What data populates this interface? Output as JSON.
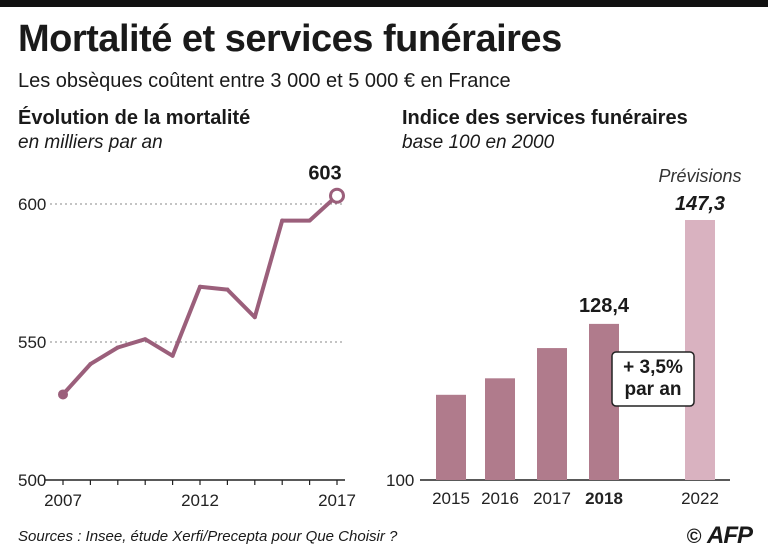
{
  "header": {
    "title": "Mortalité et services funéraires",
    "subtitle": "Les obsèques coûtent entre 3 000 et 5 000 € en France"
  },
  "chart_data": [
    {
      "type": "line",
      "title": "Évolution de la mortalité",
      "subtitle": "en milliers par an",
      "x": [
        2007,
        2008,
        2009,
        2010,
        2011,
        2012,
        2013,
        2014,
        2015,
        2016,
        2017
      ],
      "values": [
        531,
        542,
        548,
        551,
        545,
        570,
        569,
        559,
        594,
        594,
        603
      ],
      "y_ticks": [
        500,
        550,
        600
      ],
      "x_tick_labels": [
        "2007",
        "2012",
        "2017"
      ],
      "ylim": [
        500,
        620
      ],
      "highlight_label": "603",
      "color": "#9b5f7b"
    },
    {
      "type": "bar",
      "title": "Indice des services funéraires",
      "subtitle": "base 100 en 2000",
      "categories": [
        "2015",
        "2016",
        "2017",
        "2018",
        "2022"
      ],
      "values": [
        115.5,
        118.5,
        124,
        128.4,
        147.3
      ],
      "value_labels": [
        "",
        "",
        "",
        "128,4",
        "147,3"
      ],
      "bold_categories": [
        "2018"
      ],
      "forecast_label": "Prévisions",
      "annotation": "+ 3,5%\npar an",
      "y_ticks": [
        100
      ],
      "ylim": [
        100,
        150
      ],
      "colors": {
        "actual": "#b07b8c",
        "forecast": "#d9b2c0"
      }
    }
  ],
  "footer": {
    "source": "Sources : Insee, étude Xerfi/Precepta pour Que Choisir ?",
    "copyright": "©",
    "agency": "AFP"
  }
}
